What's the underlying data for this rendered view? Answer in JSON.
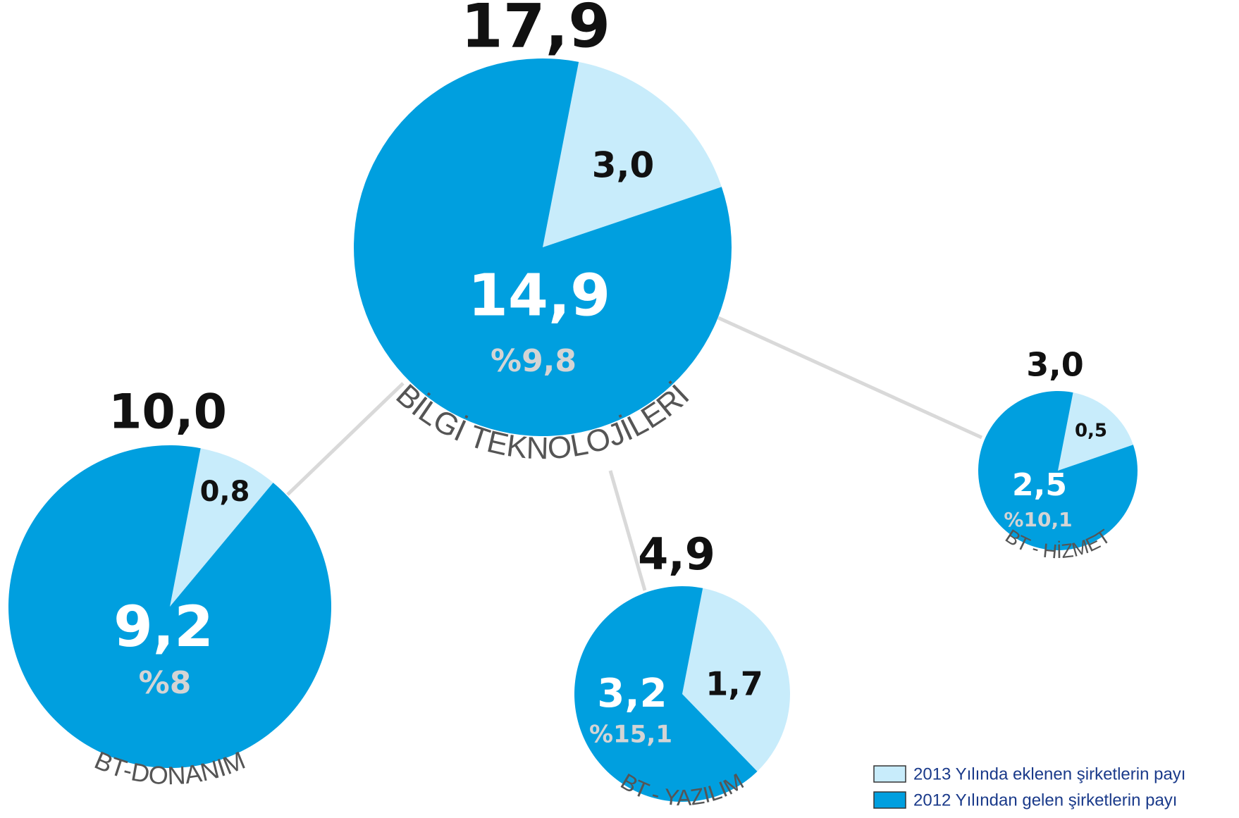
{
  "chart_data": [
    {
      "type": "pie",
      "title": "BİLGİ TEKNOLOJİLERİ",
      "total": 17.9,
      "total_label": "17,9",
      "values": [
        3.0,
        14.9
      ],
      "value_labels": [
        "3,0",
        "14,9"
      ],
      "change": 9.8,
      "change_label": "%9,8"
    },
    {
      "type": "pie",
      "title": "BT-DONANIM",
      "total": 10.0,
      "total_label": "10,0",
      "values": [
        0.8,
        9.2
      ],
      "value_labels": [
        "0,8",
        "9,2"
      ],
      "change": 8,
      "change_label": "%8"
    },
    {
      "type": "pie",
      "title": "BT - YAZILIM",
      "total": 4.9,
      "total_label": "4,9",
      "values": [
        1.7,
        3.2
      ],
      "value_labels": [
        "1,7",
        "3,2"
      ],
      "change": 15.1,
      "change_label": "%15,1"
    },
    {
      "type": "pie",
      "title": "BT - HİZMET",
      "total": 3.0,
      "total_label": "3,0",
      "values": [
        0.5,
        2.5
      ],
      "value_labels": [
        "0,5",
        "2,5"
      ],
      "change": 10.1,
      "change_label": "%10,1"
    }
  ],
  "legend": {
    "labels": [
      "2013 Yılında eklenen şirketlerin payı",
      "2012 Yılından gelen şirketlerin payı"
    ],
    "colors": [
      "#c8ecfb",
      "#009fdf"
    ]
  }
}
